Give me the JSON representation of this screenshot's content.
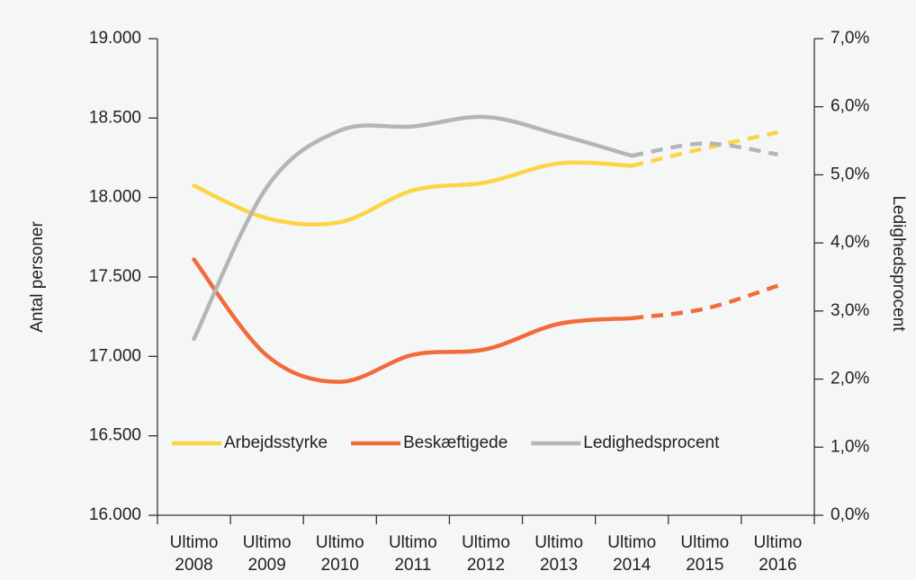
{
  "chart_data": {
    "type": "line",
    "categories": [
      "Ultimo 2008",
      "Ultimo 2009",
      "Ultimo 2010",
      "Ultimo 2011",
      "Ultimo 2012",
      "Ultimo 2013",
      "Ultimo 2014",
      "Ultimo 2015",
      "Ultimo 2016"
    ],
    "series": [
      {
        "name": "Arbejdsstyrke",
        "color": "#fcd545",
        "values": [
          18075,
          17870,
          17845,
          18045,
          18095,
          18215,
          18200,
          18310,
          18410
        ],
        "dash_from": 6
      },
      {
        "name": "Beskæftigede",
        "color": "#f26b3a",
        "values": [
          17610,
          17005,
          16840,
          17010,
          17045,
          17205,
          17240,
          17300,
          17445
        ],
        "dash_from": 6
      },
      {
        "name": "Ledighedsprocent",
        "color": "#b5b5b5",
        "label_color": "#8fc1c0",
        "axis": "y2",
        "values": [
          2.59,
          4.82,
          5.65,
          5.71,
          5.85,
          5.59,
          5.28,
          5.46,
          5.3
        ],
        "dash_from": 6
      }
    ],
    "ylabel": "Antal personer",
    "y2label": "Ledighedsprocent",
    "ylim": [
      16000,
      19000
    ],
    "yticks": [
      {
        "value": 16000,
        "label": "16.000"
      },
      {
        "value": 16500,
        "label": "16.500"
      },
      {
        "value": 17000,
        "label": "17.000"
      },
      {
        "value": 17500,
        "label": "17.500"
      },
      {
        "value": 18000,
        "label": "18.000"
      },
      {
        "value": 18500,
        "label": "18.500"
      },
      {
        "value": 19000,
        "label": "19.000"
      }
    ],
    "y2lim": [
      0,
      7
    ],
    "y2ticks": [
      {
        "value": 0,
        "label": "0,0%"
      },
      {
        "value": 1,
        "label": "1,0%"
      },
      {
        "value": 2,
        "label": "2,0%"
      },
      {
        "value": 3,
        "label": "3,0%"
      },
      {
        "value": 4,
        "label": "4,0%"
      },
      {
        "value": 5,
        "label": "5,0%"
      },
      {
        "value": 6,
        "label": "6,0%"
      },
      {
        "value": 7,
        "label": "7,0%"
      }
    ],
    "legend_position": "bottom"
  }
}
